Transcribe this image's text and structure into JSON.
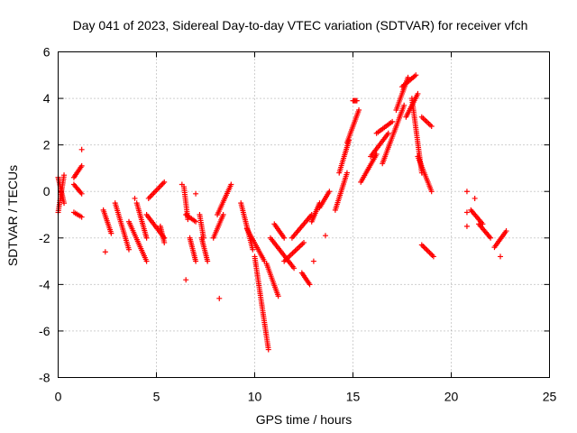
{
  "chart_data": {
    "type": "scatter",
    "title": "Day 041 of 2023, Sidereal Day-to-day VTEC variation (SDTVAR) for receiver vfch",
    "xlabel": "GPS time / hours",
    "ylabel": "SDTVAR / TECUs",
    "xlim": [
      0,
      25
    ],
    "ylim": [
      -8,
      6
    ],
    "xticks": [
      0,
      5,
      10,
      15,
      20,
      25
    ],
    "yticks": [
      -8,
      -6,
      -4,
      -2,
      0,
      2,
      4,
      6
    ],
    "grid": true,
    "marker": "+",
    "color": "#ff0000",
    "series": [
      {
        "name": "SDTVAR",
        "approx_trace": [
          {
            "x": [
              0.0,
              0.3
            ],
            "y": [
              -0.9,
              0.7
            ]
          },
          {
            "x": [
              0.0,
              0.3
            ],
            "y": [
              0.6,
              -0.5
            ]
          },
          {
            "x": [
              0.8,
              1.2
            ],
            "y": [
              0.6,
              1.1
            ]
          },
          {
            "x": [
              0.8,
              1.2
            ],
            "y": [
              0.3,
              -0.1
            ]
          },
          {
            "x": [
              0.8,
              1.2
            ],
            "y": [
              -0.9,
              -1.1
            ]
          },
          {
            "x": [
              2.3,
              2.7
            ],
            "y": [
              -0.8,
              -1.8
            ]
          },
          {
            "x": [
              2.9,
              3.6
            ],
            "y": [
              -0.5,
              -2.5
            ]
          },
          {
            "x": [
              3.6,
              4.5
            ],
            "y": [
              -1.3,
              -3.0
            ]
          },
          {
            "x": [
              4.0,
              4.5
            ],
            "y": [
              -0.5,
              -2.0
            ]
          },
          {
            "x": [
              4.5,
              5.4
            ],
            "y": [
              -1.0,
              -2.0
            ]
          },
          {
            "x": [
              4.6,
              5.4
            ],
            "y": [
              -0.3,
              0.4
            ]
          },
          {
            "x": [
              5.2,
              5.4
            ],
            "y": [
              -1.5,
              -2.2
            ]
          },
          {
            "x": [
              6.4,
              6.6
            ],
            "y": [
              0.2,
              -1.2
            ]
          },
          {
            "x": [
              6.5,
              7.0
            ],
            "y": [
              -1.0,
              -1.3
            ]
          },
          {
            "x": [
              6.7,
              7.0
            ],
            "y": [
              -2.0,
              -3.0
            ]
          },
          {
            "x": [
              7.2,
              7.4
            ],
            "y": [
              -1.0,
              -2.0
            ]
          },
          {
            "x": [
              7.3,
              7.6
            ],
            "y": [
              -2.0,
              -3.0
            ]
          },
          {
            "x": [
              7.9,
              8.4
            ],
            "y": [
              -2.0,
              -1.0
            ]
          },
          {
            "x": [
              8.1,
              8.8
            ],
            "y": [
              -1.0,
              0.3
            ]
          },
          {
            "x": [
              9.3,
              9.9
            ],
            "y": [
              -0.5,
              -2.5
            ]
          },
          {
            "x": [
              9.6,
              10.5
            ],
            "y": [
              -1.6,
              -3.0
            ]
          },
          {
            "x": [
              10.0,
              10.7
            ],
            "y": [
              -2.8,
              -6.8
            ]
          },
          {
            "x": [
              10.6,
              11.2
            ],
            "y": [
              -3.1,
              -4.5
            ]
          },
          {
            "x": [
              10.8,
              12.0
            ],
            "y": [
              -2.0,
              -3.3
            ]
          },
          {
            "x": [
              11.0,
              11.5
            ],
            "y": [
              -1.4,
              -2.0
            ]
          },
          {
            "x": [
              11.5,
              12.5
            ],
            "y": [
              -3.0,
              -2.2
            ]
          },
          {
            "x": [
              11.9,
              12.9
            ],
            "y": [
              -2.0,
              -1.0
            ]
          },
          {
            "x": [
              12.4,
              12.8
            ],
            "y": [
              -3.5,
              -4.0
            ]
          },
          {
            "x": [
              12.9,
              13.3
            ],
            "y": [
              -1.3,
              -0.5
            ]
          },
          {
            "x": [
              13.3,
              13.8
            ],
            "y": [
              -0.7,
              0.0
            ]
          },
          {
            "x": [
              14.1,
              14.7
            ],
            "y": [
              -0.8,
              0.8
            ]
          },
          {
            "x": [
              14.3,
              14.8
            ],
            "y": [
              0.8,
              2.2
            ]
          },
          {
            "x": [
              14.7,
              15.3
            ],
            "y": [
              2.1,
              3.5
            ]
          },
          {
            "x": [
              15.0,
              15.2
            ],
            "y": [
              3.9,
              3.9
            ]
          },
          {
            "x": [
              15.4,
              16.2
            ],
            "y": [
              0.4,
              1.6
            ]
          },
          {
            "x": [
              15.9,
              16.8
            ],
            "y": [
              1.5,
              2.5
            ]
          },
          {
            "x": [
              16.2,
              17.0
            ],
            "y": [
              2.5,
              3.0
            ]
          },
          {
            "x": [
              16.5,
              17.6
            ],
            "y": [
              1.2,
              3.7
            ]
          },
          {
            "x": [
              17.2,
              17.8
            ],
            "y": [
              3.5,
              4.9
            ]
          },
          {
            "x": [
              17.5,
              18.2
            ],
            "y": [
              4.5,
              5.0
            ]
          },
          {
            "x": [
              17.7,
              18.3
            ],
            "y": [
              3.2,
              4.2
            ]
          },
          {
            "x": [
              18.0,
              18.5
            ],
            "y": [
              4.0,
              0.8
            ]
          },
          {
            "x": [
              18.3,
              19.0
            ],
            "y": [
              1.5,
              0.0
            ]
          },
          {
            "x": [
              18.5,
              19.0
            ],
            "y": [
              3.2,
              2.8
            ]
          },
          {
            "x": [
              18.5,
              19.1
            ],
            "y": [
              -2.3,
              -2.8
            ]
          },
          {
            "x": [
              21.0,
              21.6
            ],
            "y": [
              -0.8,
              -1.4
            ]
          },
          {
            "x": [
              21.4,
              22.0
            ],
            "y": [
              -1.4,
              -2.0
            ]
          },
          {
            "x": [
              22.2,
              22.8
            ],
            "y": [
              -2.4,
              -1.7
            ]
          }
        ]
      }
    ],
    "outliers": [
      {
        "x": 1.2,
        "y": 1.8
      },
      {
        "x": 3.9,
        "y": -0.3
      },
      {
        "x": 6.3,
        "y": 0.3
      },
      {
        "x": 7.0,
        "y": -0.1
      },
      {
        "x": 8.2,
        "y": -4.6
      },
      {
        "x": 6.5,
        "y": -3.8
      },
      {
        "x": 2.4,
        "y": -2.6
      },
      {
        "x": 13.0,
        "y": -3.0
      },
      {
        "x": 13.6,
        "y": -1.9
      },
      {
        "x": 20.8,
        "y": 0.0
      },
      {
        "x": 20.8,
        "y": -0.9
      },
      {
        "x": 20.8,
        "y": -1.5
      },
      {
        "x": 21.2,
        "y": -0.3
      },
      {
        "x": 22.5,
        "y": -2.8
      }
    ]
  }
}
